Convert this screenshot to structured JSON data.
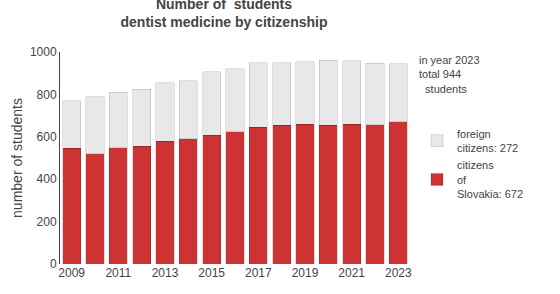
{
  "chart_data": {
    "type": "bar",
    "stacked": true,
    "title": "Number of  students\ndentist medicine by citizenship",
    "ylabel": "number of students",
    "categories": [
      "2009",
      null,
      "2011",
      null,
      "2013",
      null,
      "2015",
      null,
      "2017",
      null,
      "2019",
      null,
      "2021",
      null,
      "2023"
    ],
    "series": [
      {
        "name": "citizens\nof\nSlovakia: 672",
        "color": "#cd3333",
        "values": [
          545,
          520,
          548,
          555,
          578,
          590,
          608,
          625,
          645,
          655,
          660,
          655,
          660,
          658,
          672
        ]
      },
      {
        "name": "foreign\ncitizens: 272",
        "color": "#e8e8e8",
        "values": [
          225,
          270,
          262,
          270,
          278,
          275,
          300,
          295,
          305,
          295,
          295,
          305,
          298,
          290,
          272
        ]
      }
    ],
    "ylim": [
      0,
      1000
    ],
    "yticks": [
      0,
      200,
      400,
      600,
      800,
      1000
    ],
    "grid": false,
    "legend": "right",
    "annotations": [
      "in year 2023\ntotal 944\n  students"
    ]
  }
}
